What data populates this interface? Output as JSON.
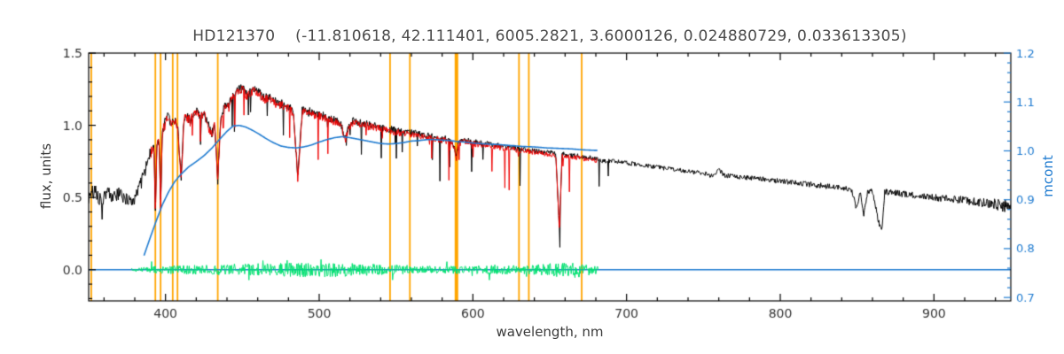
{
  "page": {
    "background": "#ffffff"
  },
  "chart_data": {
    "type": "line",
    "title": "HD121370    (-11.810618, 42.111401, 6005.2821, 3.6000126, 0.024880729, 0.033613305)",
    "xlabel": "wavelength, nm",
    "ylabel_left": "flux, units",
    "ylabel_right": "mcont",
    "xlim": [
      350,
      950
    ],
    "ylim_left": [
      -0.216,
      1.5
    ],
    "ylim_right": [
      0.693,
      1.2
    ],
    "x_ticks": [
      400,
      500,
      600,
      700,
      800,
      900
    ],
    "x_tick_labels": [
      "400",
      "500",
      "600",
      "700",
      "800",
      "900"
    ],
    "x_minor_step": 20,
    "y_ticks_left": [
      0.0,
      0.5,
      1.0,
      1.5
    ],
    "y_tick_labels_left": [
      "0.0",
      "0.5",
      "1.0",
      "1.5"
    ],
    "y_minor_step_left": 0.1,
    "y_ticks_right": [
      0.7,
      0.8,
      0.9,
      1.0,
      1.1,
      1.2
    ],
    "y_tick_labels_right": [
      "0.7",
      "0.8",
      "0.9",
      "1.0",
      "1.1",
      "1.2"
    ],
    "y_minor_step_right": 0.02,
    "grid": false,
    "legend": "none",
    "colors": {
      "observed": "#000000",
      "fitted": "#ee0000",
      "continuum": "#1f7bd0",
      "residuals": "#00e070",
      "vlines": "#ffa500",
      "frame": "#000000",
      "tick_text": "#333333",
      "right_axis_text": "#1f7bd0"
    },
    "vlines": {
      "color": "#ffa500",
      "wavelengths": [
        351.7,
        393.4,
        396.8,
        404.7,
        407.8,
        434.0,
        546.1,
        559.0,
        589.3,
        630.0,
        636.4,
        670.8
      ],
      "thick": [
        589.3
      ]
    },
    "hline": {
      "axis": "left",
      "y": 0.0,
      "color": "#1f7bd0",
      "range": [
        350,
        950
      ]
    },
    "series": [
      {
        "name": "residuals",
        "axis": "left",
        "color": "#00e070",
        "width": 1,
        "seed": 303,
        "step": 0.35,
        "range": [
          378,
          682
        ],
        "anchors": [
          [
            378,
            0.0
          ],
          [
            682,
            0.0
          ]
        ],
        "noise_envelope": [
          [
            378,
            0.012
          ],
          [
            388,
            0.018
          ],
          [
            396,
            0.028
          ],
          [
            410,
            0.03
          ],
          [
            430,
            0.035
          ],
          [
            450,
            0.042
          ],
          [
            470,
            0.045
          ],
          [
            490,
            0.05
          ],
          [
            510,
            0.05
          ],
          [
            530,
            0.042
          ],
          [
            548,
            0.035
          ],
          [
            565,
            0.028
          ],
          [
            580,
            0.026
          ],
          [
            600,
            0.028
          ],
          [
            615,
            0.032
          ],
          [
            630,
            0.03
          ],
          [
            645,
            0.038
          ],
          [
            656,
            0.05
          ],
          [
            668,
            0.055
          ],
          [
            676,
            0.04
          ],
          [
            682,
            0.025
          ]
        ],
        "spikes": {
          "range": [
            378,
            682
          ],
          "prob": 0.05,
          "max_depth": 0.09,
          "bipolar": true
        }
      },
      {
        "name": "observed-spectrum",
        "axis": "left",
        "color": "#000000",
        "width": 1,
        "seed": 101,
        "step": 0.35,
        "range": [
          350,
          950
        ],
        "anchors": [
          [
            350,
            0.5
          ],
          [
            354,
            0.55
          ],
          [
            358,
            0.48
          ],
          [
            362,
            0.54
          ],
          [
            366,
            0.5
          ],
          [
            370,
            0.52
          ],
          [
            374,
            0.5
          ],
          [
            378,
            0.44
          ],
          [
            381,
            0.54
          ],
          [
            384,
            0.6
          ],
          [
            387,
            0.7
          ],
          [
            390,
            0.8
          ],
          [
            392.5,
            0.88
          ],
          [
            393.4,
            0.4
          ],
          [
            394.5,
            0.9
          ],
          [
            396,
            0.88
          ],
          [
            396.8,
            0.45
          ],
          [
            398,
            0.96
          ],
          [
            400,
            1.03
          ],
          [
            402,
            1.06
          ],
          [
            404,
            1.0
          ],
          [
            406,
            1.04
          ],
          [
            408,
            0.99
          ],
          [
            410.2,
            0.64
          ],
          [
            412,
            1.05
          ],
          [
            414,
            1.07
          ],
          [
            416,
            1.03
          ],
          [
            418,
            1.09
          ],
          [
            420,
            1.11
          ],
          [
            422,
            1.07
          ],
          [
            425,
            1.09
          ],
          [
            427,
            1.03
          ],
          [
            430,
            0.94
          ],
          [
            432,
            1.02
          ],
          [
            434,
            0.62
          ],
          [
            436,
            1.07
          ],
          [
            438,
            1.12
          ],
          [
            440,
            1.14
          ],
          [
            443,
            1.2
          ],
          [
            446,
            1.24
          ],
          [
            450,
            1.26
          ],
          [
            453,
            1.21
          ],
          [
            456,
            1.25
          ],
          [
            460,
            1.24
          ],
          [
            464,
            1.19
          ],
          [
            468,
            1.2
          ],
          [
            472,
            1.16
          ],
          [
            476,
            1.15
          ],
          [
            480,
            1.13
          ],
          [
            483,
            1.1
          ],
          [
            486.1,
            0.64
          ],
          [
            489,
            1.11
          ],
          [
            492,
            1.11
          ],
          [
            495,
            1.09
          ],
          [
            498,
            1.08
          ],
          [
            502,
            1.07
          ],
          [
            506,
            1.05
          ],
          [
            510,
            1.04
          ],
          [
            514,
            1.01
          ],
          [
            517,
            0.9
          ],
          [
            519,
            0.99
          ],
          [
            522,
            1.03
          ],
          [
            526,
            1.02
          ],
          [
            530,
            1.01
          ],
          [
            535,
            1.0
          ],
          [
            540,
            0.99
          ],
          [
            545,
            0.975
          ],
          [
            550,
            0.965
          ],
          [
            555,
            0.955
          ],
          [
            560,
            0.95
          ],
          [
            565,
            0.94
          ],
          [
            570,
            0.93
          ],
          [
            575,
            0.92
          ],
          [
            580,
            0.91
          ],
          [
            585,
            0.9
          ],
          [
            588,
            0.85
          ],
          [
            589.3,
            0.77
          ],
          [
            590.5,
            0.88
          ],
          [
            593,
            0.9
          ],
          [
            596,
            0.895
          ],
          [
            600,
            0.885
          ],
          [
            605,
            0.878
          ],
          [
            610,
            0.87
          ],
          [
            615,
            0.862
          ],
          [
            620,
            0.855
          ],
          [
            625,
            0.848
          ],
          [
            630,
            0.84
          ],
          [
            635,
            0.832
          ],
          [
            640,
            0.824
          ],
          [
            645,
            0.816
          ],
          [
            650,
            0.81
          ],
          [
            654,
            0.8
          ],
          [
            656.3,
            0.27
          ],
          [
            658,
            0.8
          ],
          [
            662,
            0.795
          ],
          [
            666,
            0.79
          ],
          [
            670,
            0.785
          ],
          [
            675,
            0.778
          ],
          [
            680,
            0.77
          ],
          [
            686,
            0.75
          ],
          [
            690,
            0.755
          ],
          [
            695,
            0.748
          ],
          [
            700,
            0.74
          ],
          [
            710,
            0.725
          ],
          [
            720,
            0.71
          ],
          [
            730,
            0.695
          ],
          [
            740,
            0.68
          ],
          [
            750,
            0.668
          ],
          [
            757,
            0.645
          ],
          [
            760,
            0.7
          ],
          [
            763,
            0.655
          ],
          [
            770,
            0.645
          ],
          [
            780,
            0.635
          ],
          [
            790,
            0.625
          ],
          [
            800,
            0.615
          ],
          [
            810,
            0.6
          ],
          [
            820,
            0.59
          ],
          [
            830,
            0.578
          ],
          [
            840,
            0.566
          ],
          [
            846,
            0.56
          ],
          [
            849.8,
            0.42
          ],
          [
            852,
            0.555
          ],
          [
            854.2,
            0.38
          ],
          [
            857,
            0.55
          ],
          [
            860,
            0.545
          ],
          [
            864,
            0.33
          ],
          [
            866.2,
            0.29
          ],
          [
            868,
            0.54
          ],
          [
            872,
            0.535
          ],
          [
            876,
            0.53
          ],
          [
            880,
            0.525
          ],
          [
            890,
            0.515
          ],
          [
            900,
            0.5
          ],
          [
            910,
            0.49
          ],
          [
            920,
            0.48
          ],
          [
            930,
            0.465
          ],
          [
            940,
            0.455
          ],
          [
            950,
            0.44
          ]
        ],
        "noise_envelope": [
          [
            350,
            0.055
          ],
          [
            368,
            0.05
          ],
          [
            382,
            0.05
          ],
          [
            390,
            0.042
          ],
          [
            400,
            0.036
          ],
          [
            420,
            0.032
          ],
          [
            450,
            0.03
          ],
          [
            500,
            0.027
          ],
          [
            550,
            0.024
          ],
          [
            600,
            0.021
          ],
          [
            650,
            0.018
          ],
          [
            700,
            0.015
          ],
          [
            750,
            0.016
          ],
          [
            800,
            0.018
          ],
          [
            850,
            0.02
          ],
          [
            900,
            0.024
          ],
          [
            935,
            0.032
          ],
          [
            950,
            0.055
          ]
        ],
        "spikes": {
          "range": [
            355,
            700
          ],
          "prob": 0.05,
          "max_depth": 0.35,
          "bipolar": false
        }
      },
      {
        "name": "fitted-spectrum",
        "axis": "left",
        "color": "#ee0000",
        "width": 1,
        "seed": 202,
        "step": 0.35,
        "range": [
          390.5,
          681
        ],
        "anchors": "observed-spectrum",
        "offset": -0.012,
        "noise_envelope": [
          [
            390,
            0.04
          ],
          [
            420,
            0.032
          ],
          [
            450,
            0.03
          ],
          [
            500,
            0.027
          ],
          [
            550,
            0.024
          ],
          [
            600,
            0.021
          ],
          [
            650,
            0.018
          ],
          [
            681,
            0.017
          ]
        ],
        "spikes": {
          "range": [
            391,
            668
          ],
          "prob": 0.05,
          "max_depth": 0.3,
          "bipolar": false
        }
      },
      {
        "name": "continuum-mcont",
        "axis": "right",
        "color": "#1f7bd0",
        "width": 1.6,
        "step": 0.5,
        "range": [
          386,
          681
        ],
        "anchors": [
          [
            386,
            0.786
          ],
          [
            390,
            0.822
          ],
          [
            394,
            0.857
          ],
          [
            398,
            0.89
          ],
          [
            402,
            0.916
          ],
          [
            406,
            0.937
          ],
          [
            410,
            0.952
          ],
          [
            415,
            0.967
          ],
          [
            420,
            0.978
          ],
          [
            425,
            0.99
          ],
          [
            430,
            1.005
          ],
          [
            435,
            1.023
          ],
          [
            440,
            1.04
          ],
          [
            444,
            1.051
          ],
          [
            448,
            1.052
          ],
          [
            452,
            1.049
          ],
          [
            456,
            1.043
          ],
          [
            460,
            1.036
          ],
          [
            465,
            1.026
          ],
          [
            470,
            1.017
          ],
          [
            475,
            1.01
          ],
          [
            480,
            1.007
          ],
          [
            485,
            1.006
          ],
          [
            490,
            1.008
          ],
          [
            495,
            1.012
          ],
          [
            500,
            1.018
          ],
          [
            505,
            1.023
          ],
          [
            510,
            1.027
          ],
          [
            515,
            1.029
          ],
          [
            520,
            1.027
          ],
          [
            525,
            1.024
          ],
          [
            530,
            1.021
          ],
          [
            535,
            1.018
          ],
          [
            540,
            1.015
          ],
          [
            545,
            1.014
          ],
          [
            550,
            1.015
          ],
          [
            555,
            1.017
          ],
          [
            560,
            1.02
          ],
          [
            565,
            1.021
          ],
          [
            570,
            1.023
          ],
          [
            575,
            1.023
          ],
          [
            580,
            1.022
          ],
          [
            585,
            1.021
          ],
          [
            590,
            1.019
          ],
          [
            595,
            1.018
          ],
          [
            600,
            1.016
          ],
          [
            608,
            1.014
          ],
          [
            616,
            1.013
          ],
          [
            624,
            1.011
          ],
          [
            632,
            1.009
          ],
          [
            640,
            1.008
          ],
          [
            648,
            1.006
          ],
          [
            656,
            1.005
          ],
          [
            664,
            1.004
          ],
          [
            672,
            1.002
          ],
          [
            680,
            1.001
          ]
        ]
      }
    ]
  }
}
